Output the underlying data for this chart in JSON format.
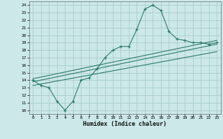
{
  "title": "",
  "xlabel": "Humidex (Indice chaleur)",
  "bg_color": "#cce8e8",
  "grid_color": "#aacccc",
  "line_color": "#2a7a6a",
  "xlim": [
    -0.5,
    23.5
  ],
  "ylim": [
    9.5,
    24.5
  ],
  "xticks": [
    0,
    1,
    2,
    3,
    4,
    5,
    6,
    7,
    8,
    9,
    10,
    11,
    12,
    13,
    14,
    15,
    16,
    17,
    18,
    19,
    20,
    21,
    22,
    23
  ],
  "yticks": [
    10,
    11,
    12,
    13,
    14,
    15,
    16,
    17,
    18,
    19,
    20,
    21,
    22,
    23,
    24
  ],
  "main_x": [
    0,
    1,
    2,
    3,
    4,
    5,
    6,
    7,
    8,
    9,
    10,
    11,
    12,
    13,
    14,
    15,
    16,
    17,
    18,
    19,
    20,
    21,
    22,
    23
  ],
  "main_y": [
    14,
    13.3,
    13,
    11.2,
    10,
    11.2,
    14.0,
    14.3,
    15.5,
    17.0,
    18.0,
    18.5,
    18.5,
    20.8,
    23.5,
    24.0,
    23.3,
    20.5,
    19.5,
    19.3,
    19.0,
    19.0,
    18.8,
    19.0
  ],
  "trend1_x": [
    0,
    23
  ],
  "trend1_y": [
    14.2,
    19.3
  ],
  "trend2_x": [
    0,
    23
  ],
  "trend2_y": [
    13.8,
    18.8
  ],
  "trend3_x": [
    0,
    23
  ],
  "trend3_y": [
    13.3,
    17.8
  ]
}
